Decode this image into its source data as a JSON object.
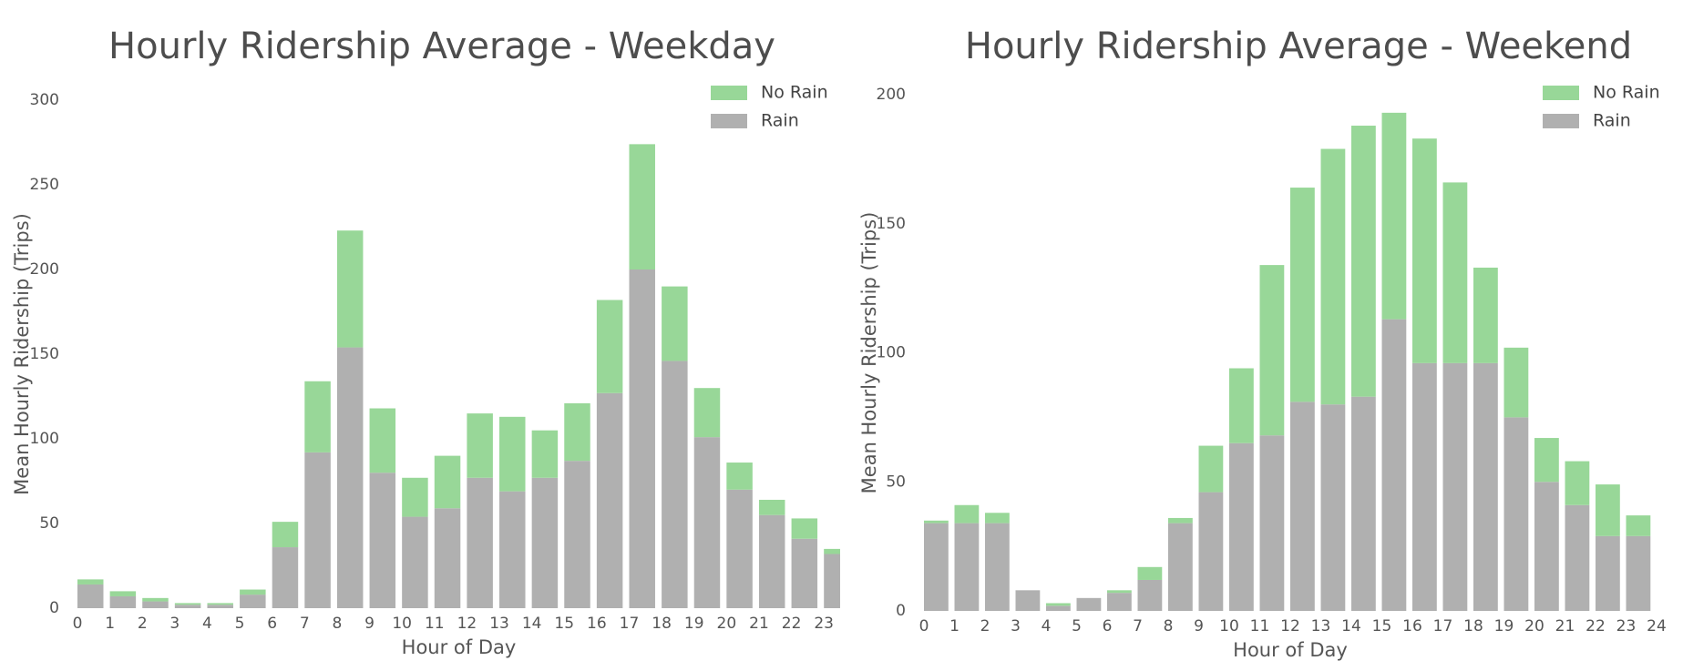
{
  "chart_data": [
    {
      "type": "bar",
      "stacked": true,
      "title": "Hourly Ridership Average - Weekday",
      "xlabel": "Hour of Day",
      "ylabel": "Mean Hourly Ridership (Trips)",
      "x": [
        0,
        1,
        2,
        3,
        4,
        5,
        6,
        7,
        8,
        9,
        10,
        11,
        12,
        13,
        14,
        15,
        16,
        17,
        18,
        19,
        20,
        21,
        22,
        23
      ],
      "bar_width": 0.8,
      "series": [
        {
          "name": "Rain",
          "color": "#b0b0b0",
          "values": [
            14,
            7,
            4,
            2,
            2,
            8,
            36,
            92,
            154,
            80,
            54,
            59,
            77,
            69,
            77,
            87,
            127,
            200,
            146,
            101,
            70,
            55,
            41,
            32
          ]
        },
        {
          "name": "No Rain",
          "color": "#98d798",
          "values": [
            3,
            3,
            2,
            1,
            1,
            3,
            15,
            42,
            69,
            38,
            23,
            31,
            38,
            44,
            28,
            34,
            55,
            74,
            44,
            29,
            16,
            9,
            12,
            3
          ]
        }
      ],
      "xlim": [
        0,
        23.5
      ],
      "xticks": [
        0,
        1,
        2,
        3,
        4,
        5,
        6,
        7,
        8,
        9,
        10,
        11,
        12,
        13,
        14,
        15,
        16,
        17,
        18,
        19,
        20,
        21,
        22,
        23
      ],
      "ylim": [
        0,
        300
      ],
      "yticks": [
        0,
        50,
        100,
        150,
        200,
        250,
        300
      ],
      "grid": false,
      "legend": "upper right"
    },
    {
      "type": "bar",
      "stacked": true,
      "title": "Hourly Ridership Average - Weekend",
      "xlabel": "Hour of Day",
      "ylabel": "Mean Hourly Ridership (Trips)",
      "x": [
        0,
        1,
        2,
        3,
        4,
        5,
        6,
        7,
        8,
        9,
        10,
        11,
        12,
        13,
        14,
        15,
        16,
        17,
        18,
        19,
        20,
        21,
        22,
        23
      ],
      "bar_width": 0.8,
      "series": [
        {
          "name": "Rain",
          "color": "#b0b0b0",
          "values": [
            34,
            34,
            34,
            8,
            2,
            5,
            7,
            12,
            34,
            46,
            65,
            68,
            81,
            80,
            83,
            113,
            96,
            96,
            96,
            75,
            50,
            41,
            29,
            29
          ]
        },
        {
          "name": "No Rain",
          "color": "#98d798",
          "values": [
            1,
            7,
            4,
            0,
            1,
            0,
            1,
            5,
            2,
            18,
            29,
            66,
            83,
            99,
            105,
            80,
            87,
            70,
            37,
            27,
            17,
            17,
            20,
            8
          ]
        }
      ],
      "xlim": [
        0,
        24
      ],
      "xticks": [
        0,
        1,
        2,
        3,
        4,
        5,
        6,
        7,
        8,
        9,
        10,
        11,
        12,
        13,
        14,
        15,
        16,
        17,
        18,
        19,
        20,
        21,
        22,
        23,
        24
      ],
      "ylim": [
        0,
        200
      ],
      "yticks": [
        0,
        50,
        100,
        150,
        200
      ],
      "grid": false,
      "legend": "upper right"
    }
  ]
}
